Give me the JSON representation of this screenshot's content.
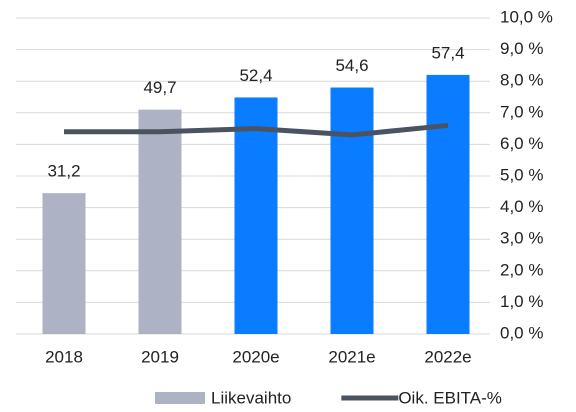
{
  "chart_data": {
    "type": "bar_line",
    "categories": [
      "2018",
      "2019",
      "2020e",
      "2021e",
      "2022e"
    ],
    "ylim": [
      0,
      70
    ],
    "y2lim": [
      0,
      10
    ],
    "y2ticks": [
      {
        "value": 0,
        "label": "0,0 %"
      },
      {
        "value": 1,
        "label": "1,0 %"
      },
      {
        "value": 2,
        "label": "2,0 %"
      },
      {
        "value": 3,
        "label": "3,0 %"
      },
      {
        "value": 4,
        "label": "4,0 %"
      },
      {
        "value": 5,
        "label": "5,0 %"
      },
      {
        "value": 6,
        "label": "6,0 %"
      },
      {
        "value": 7,
        "label": "7,0 %"
      },
      {
        "value": 8,
        "label": "8,0 %"
      },
      {
        "value": 9,
        "label": "9,0 %"
      },
      {
        "value": 10,
        "label": "10,0 %"
      }
    ],
    "grid": true,
    "legend": "bottom",
    "series": [
      {
        "name": "Liikevaihto",
        "type": "bar",
        "color": "#adb3c4",
        "colors": [
          "#adb3c4",
          "#adb3c4",
          "#0a7cff",
          "#0a7cff",
          "#0a7cff"
        ],
        "values": [
          31.2,
          49.7,
          52.4,
          54.6,
          57.4
        ],
        "value_labels": [
          "31,2",
          "49,7",
          "52,4",
          "54,6",
          "57,4"
        ]
      },
      {
        "name": "Oik. EBITA-%",
        "type": "line",
        "axis": "y2",
        "color": "#4b5361",
        "values": [
          6.4,
          6.4,
          6.5,
          6.3,
          6.6
        ]
      }
    ]
  }
}
